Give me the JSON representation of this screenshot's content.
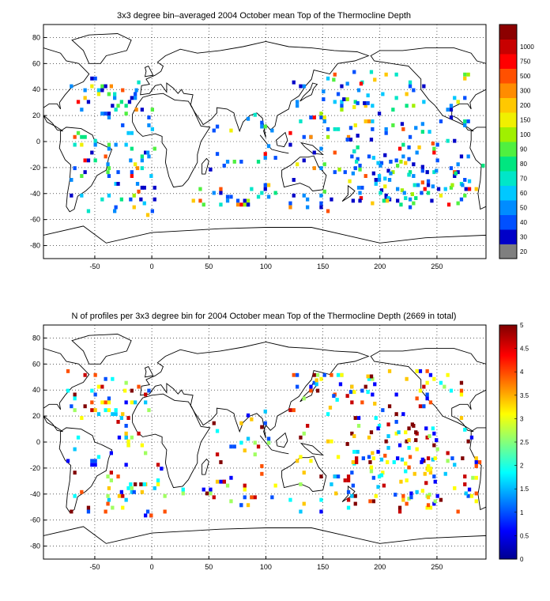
{
  "chart_data": [
    {
      "type": "heatmap",
      "title": "3x3 degree bin–averaged 2004 October mean Top of the Thermocline Depth",
      "xlabel": "",
      "ylabel": "",
      "xlim": [
        -95,
        293
      ],
      "ylim": [
        -90,
        90
      ],
      "x_ticks": [
        "-50",
        "0",
        "50",
        "100",
        "150",
        "200",
        "250"
      ],
      "x_tick_values": [
        -50,
        0,
        50,
        100,
        150,
        200,
        250
      ],
      "y_ticks": [
        "80",
        "60",
        "40",
        "20",
        "0",
        "-20",
        "-40",
        "-60",
        "-80"
      ],
      "y_tick_values": [
        80,
        60,
        40,
        20,
        0,
        -20,
        -40,
        -60,
        -80
      ],
      "grid": "dotted",
      "colorbar": {
        "scale": "categorical",
        "labels": [
          "20",
          "30",
          "40",
          "50",
          "60",
          "70",
          "80",
          "90",
          "100",
          "150",
          "200",
          "300",
          "500",
          "750",
          "1000"
        ],
        "colors": [
          "#7f7f7f",
          "#0000c8",
          "#0050ff",
          "#008cff",
          "#00c8ff",
          "#00e6c8",
          "#00e680",
          "#50f040",
          "#a0f000",
          "#f0f000",
          "#ffc800",
          "#ff8c00",
          "#ff5000",
          "#ff0000",
          "#c80000",
          "#8c0000"
        ]
      }
    },
    {
      "type": "heatmap",
      "title": "N of profiles per 3x3 degree bin for 2004 October mean Top of the Thermocline Depth  (2669 in total)",
      "xlabel": "",
      "ylabel": "",
      "xlim": [
        -95,
        293
      ],
      "ylim": [
        -90,
        90
      ],
      "x_ticks": [
        "-50",
        "0",
        "50",
        "100",
        "150",
        "200",
        "250"
      ],
      "x_tick_values": [
        -50,
        0,
        50,
        100,
        150,
        200,
        250
      ],
      "y_ticks": [
        "80",
        "60",
        "40",
        "20",
        "0",
        "-20",
        "-40",
        "-60",
        "-80"
      ],
      "y_tick_values": [
        80,
        60,
        40,
        20,
        0,
        -20,
        -40,
        -60,
        -80
      ],
      "grid": "dotted",
      "colorbar": {
        "scale": "continuous",
        "range": [
          0,
          5
        ],
        "labels": [
          "5",
          "4.5",
          "4",
          "3.5",
          "3",
          "2.5",
          "2",
          "1.5",
          "1",
          "0.5",
          "0"
        ],
        "label_values": [
          5,
          4.5,
          4,
          3.5,
          3,
          2.5,
          2,
          1.5,
          1,
          0.5,
          0
        ]
      }
    }
  ]
}
